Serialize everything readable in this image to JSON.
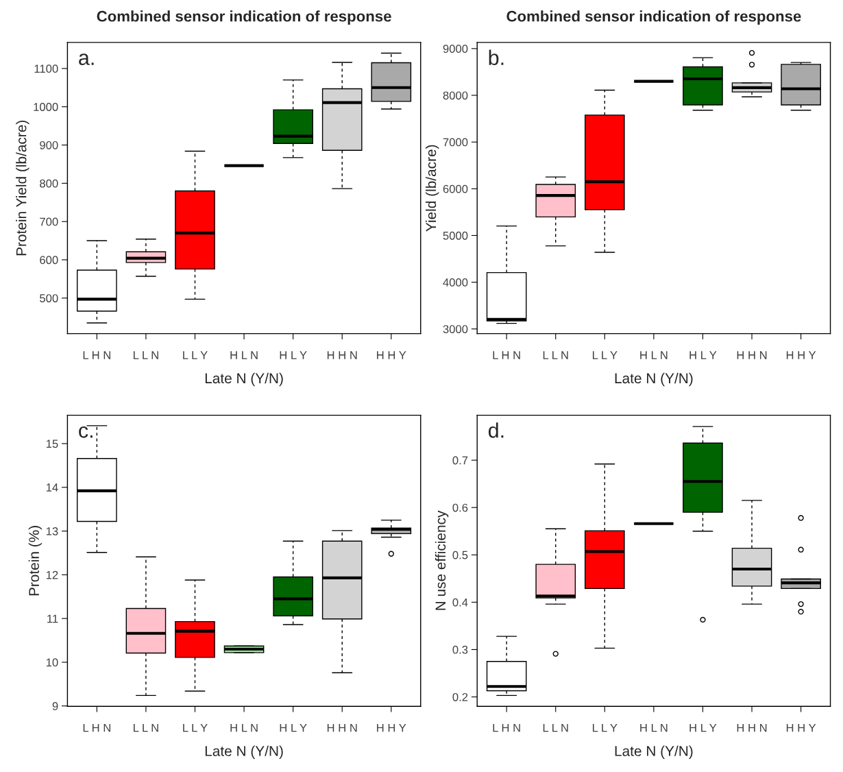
{
  "chart_data": [
    {
      "type": "box",
      "title": "Combined sensor indication of response",
      "ylabel": "Protein Yield (lb/acre)",
      "xlabel": "Late N (Y/N)",
      "annotations": [
        "a."
      ],
      "categories": [
        "L H N",
        "L L N",
        "L L Y",
        "H L N",
        "H L Y",
        "H H N",
        "H H Y"
      ],
      "colors": [
        "#ffffff",
        "#ffc0cb",
        "#ff0000",
        null,
        "#006400",
        "#d3d3d3",
        "#a9a9a9"
      ],
      "ylim": [
        407,
        1168
      ],
      "yticks": [
        500,
        600,
        700,
        800,
        900,
        1000,
        1100
      ],
      "grid": false,
      "boxes": [
        {
          "low": 435,
          "q1": 466,
          "median": 497,
          "q3": 573,
          "high": 650
        },
        {
          "low": 557,
          "q1": 593,
          "median": 604,
          "q3": 621,
          "high": 654
        },
        {
          "low": 497,
          "q1": 576,
          "median": 670,
          "q3": 780,
          "high": 884
        },
        {
          "low": 846,
          "q1": 846,
          "median": 846,
          "q3": 846,
          "high": 846
        },
        {
          "low": 867,
          "q1": 904,
          "median": 923,
          "q3": 992,
          "high": 1070
        },
        {
          "low": 786,
          "q1": 886,
          "median": 1011,
          "q3": 1047,
          "high": 1116
        },
        {
          "low": 994,
          "q1": 1014,
          "median": 1050,
          "q3": 1115,
          "high": 1140
        }
      ]
    },
    {
      "type": "box",
      "title": "Combined sensor indication of response",
      "ylabel": "Yield (lb/acre)",
      "xlabel": "Late N (Y/N)",
      "annotations": [
        "b."
      ],
      "categories": [
        "L H N",
        "L L N",
        "L L Y",
        "H L N",
        "H L Y",
        "H H N",
        "H H Y"
      ],
      "colors": [
        "#ffffff",
        "#ffc0cb",
        "#ff0000",
        null,
        "#006400",
        "#d3d3d3",
        "#a9a9a9"
      ],
      "ylim": [
        2899,
        9131
      ],
      "yticks": [
        3000,
        4000,
        5000,
        6000,
        7000,
        8000,
        9000
      ],
      "grid": false,
      "boxes": [
        {
          "low": 3120,
          "q1": 3172,
          "median": 3206,
          "q3": 4205,
          "high": 5203
        },
        {
          "low": 4778,
          "q1": 5398,
          "median": 5857,
          "q3": 6092,
          "high": 6252
        },
        {
          "low": 4640,
          "q1": 5553,
          "median": 6149,
          "q3": 7577,
          "high": 8111
        },
        {
          "low": 8300,
          "q1": 8300,
          "median": 8300,
          "q3": 8300,
          "high": 8300
        },
        {
          "low": 7681,
          "q1": 7795,
          "median": 8352,
          "q3": 8610,
          "high": 8805
        },
        {
          "low": 7967,
          "q1": 8071,
          "median": 8163,
          "q3": 8266,
          "high": 8266,
          "outliers": [
            8656,
            8908
          ]
        },
        {
          "low": 7681,
          "q1": 7795,
          "median": 8140,
          "q3": 8662,
          "high": 8702
        }
      ]
    },
    {
      "type": "box",
      "ylabel": "Protein (%)",
      "xlabel": "Late N (Y/N)",
      "annotations": [
        "c."
      ],
      "categories": [
        "L H N",
        "L L N",
        "L L Y",
        "H L N",
        "H L Y",
        "H H N",
        "H H Y"
      ],
      "colors": [
        "#ffffff",
        "#ffc0cb",
        "#ff0000",
        "#90ee90",
        "#006400",
        "#d3d3d3",
        "#a9a9a9"
      ],
      "ylim": [
        8.99,
        15.65
      ],
      "yticks": [
        9,
        10,
        11,
        12,
        13,
        14,
        15
      ],
      "grid": false,
      "boxes": [
        {
          "low": 12.51,
          "q1": 13.22,
          "median": 13.92,
          "q3": 14.66,
          "high": 15.41
        },
        {
          "low": 9.24,
          "q1": 10.21,
          "median": 10.66,
          "q3": 11.23,
          "high": 12.41
        },
        {
          "low": 9.34,
          "q1": 10.11,
          "median": 10.71,
          "q3": 10.93,
          "high": 11.88
        },
        {
          "low": 10.22,
          "q1": 10.22,
          "median": 10.3,
          "q3": 10.37,
          "high": 10.37
        },
        {
          "low": 10.86,
          "q1": 11.06,
          "median": 11.45,
          "q3": 11.95,
          "high": 12.77
        },
        {
          "low": 9.76,
          "q1": 10.99,
          "median": 11.93,
          "q3": 12.77,
          "high": 13.01
        },
        {
          "low": 12.86,
          "q1": 12.94,
          "median": 13.04,
          "q3": 13.07,
          "high": 13.25,
          "outliers": [
            12.48
          ]
        }
      ]
    },
    {
      "type": "box",
      "ylabel": "N use efficiency",
      "xlabel": "Late N (Y/N)",
      "annotations": [
        "d."
      ],
      "categories": [
        "L H N",
        "L L N",
        "L L Y",
        "H L N",
        "H L Y",
        "H H N",
        "H H Y"
      ],
      "colors": [
        "#ffffff",
        "#ffc0cb",
        "#ff0000",
        null,
        "#006400",
        "#d3d3d3",
        "#a9a9a9"
      ],
      "ylim": [
        0.18,
        0.795
      ],
      "yticks": [
        0.2,
        0.3,
        0.4,
        0.5,
        0.6,
        0.7
      ],
      "grid": false,
      "boxes": [
        {
          "low": 0.203,
          "q1": 0.213,
          "median": 0.222,
          "q3": 0.275,
          "high": 0.328
        },
        {
          "low": 0.396,
          "q1": 0.409,
          "median": 0.413,
          "q3": 0.48,
          "high": 0.555,
          "outliers": [
            0.291
          ]
        },
        {
          "low": 0.303,
          "q1": 0.429,
          "median": 0.507,
          "q3": 0.551,
          "high": 0.692
        },
        {
          "low": 0.566,
          "q1": 0.566,
          "median": 0.566,
          "q3": 0.566,
          "high": 0.566
        },
        {
          "low": 0.55,
          "q1": 0.59,
          "median": 0.655,
          "q3": 0.736,
          "high": 0.771,
          "outliers": [
            0.363
          ]
        },
        {
          "low": 0.396,
          "q1": 0.434,
          "median": 0.47,
          "q3": 0.514,
          "high": 0.615
        },
        {
          "low": 0.429,
          "q1": 0.429,
          "median": 0.441,
          "q3": 0.449,
          "high": 0.449,
          "outliers": [
            0.396,
            0.38,
            0.511,
            0.578
          ]
        }
      ]
    }
  ]
}
